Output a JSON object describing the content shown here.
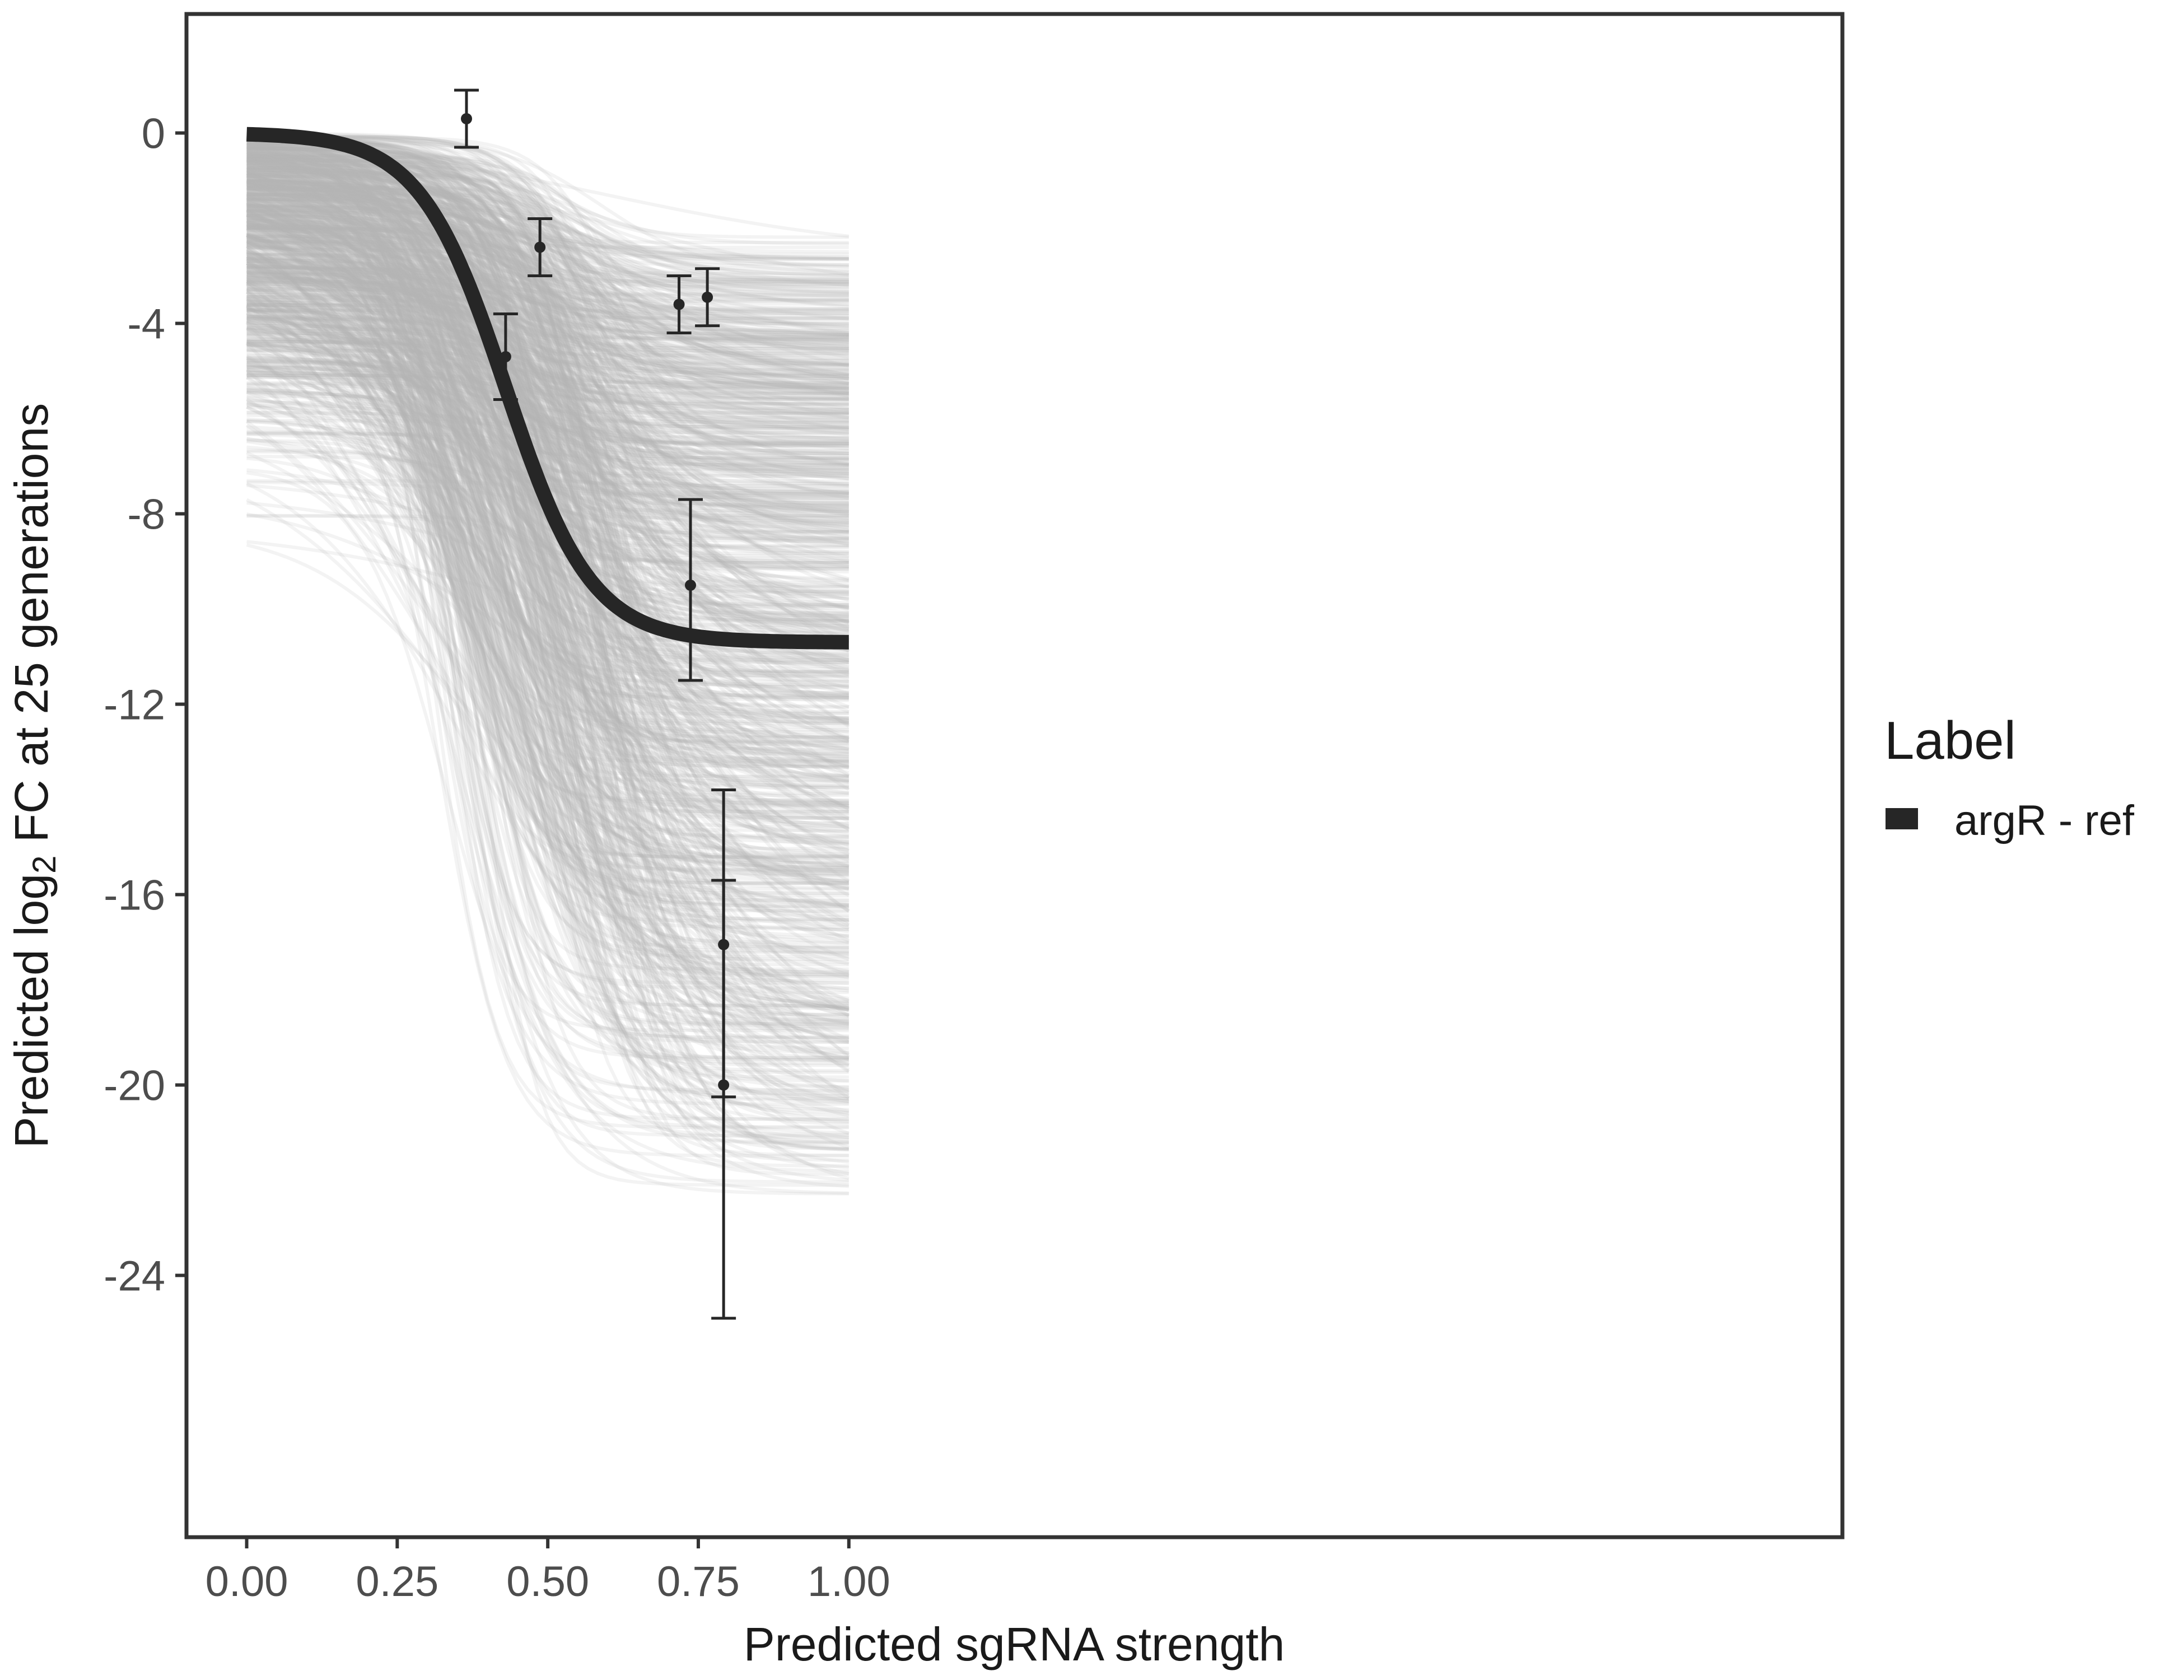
{
  "chart_data": {
    "type": "line",
    "title": "",
    "xlabel": "Predicted sgRNA strength",
    "ylabel_parts": {
      "prefix": "Predicted  log",
      "subscript": "2",
      "suffix": " FC at 25 generations"
    },
    "xlim": [
      -0.1,
      2.65
    ],
    "ylim": [
      -29.5,
      2.5
    ],
    "x_ticks": [
      0,
      0.25,
      0.5,
      0.75,
      1.0
    ],
    "x_tick_labels": [
      "0.00",
      "0.25",
      "0.50",
      "0.75",
      "1.00"
    ],
    "y_ticks": [
      0,
      -4,
      -8,
      -12,
      -16,
      -20,
      -24
    ],
    "y_tick_labels": [
      "0",
      "-4",
      "-8",
      "-12",
      "-16",
      "-20",
      "-24"
    ],
    "grid": false,
    "legend": {
      "title": "Label",
      "position": "right",
      "entries": [
        {
          "name": "argR - ref",
          "color": "#262626"
        }
      ]
    },
    "main_curve": {
      "name": "argR - ref",
      "model": "logistic",
      "upper": 0.0,
      "lower": -10.7,
      "midpoint": 0.43,
      "slope": 14,
      "x_range": [
        0,
        1.0
      ],
      "color": "#262626"
    },
    "posterior_draws": {
      "count": 1000,
      "color": "#b3b3b3",
      "opacity": 0.16,
      "upper_range": [
        -10.5,
        0.0
      ],
      "lower_range": [
        -22.5,
        -2.0
      ],
      "midpoint_range": [
        0.3,
        0.62
      ],
      "slope_range": [
        4,
        22
      ]
    },
    "points": [
      {
        "x": 0.365,
        "y": 0.3,
        "ymin": -0.3,
        "ymax": 0.9
      },
      {
        "x": 0.43,
        "y": -4.7,
        "ymin": -5.6,
        "ymax": -3.8
      },
      {
        "x": 0.487,
        "y": -2.4,
        "ymin": -3.0,
        "ymax": -1.8
      },
      {
        "x": 0.718,
        "y": -3.6,
        "ymin": -4.2,
        "ymax": -3.0
      },
      {
        "x": 0.765,
        "y": -3.45,
        "ymin": -4.05,
        "ymax": -2.85
      },
      {
        "x": 0.737,
        "y": -9.5,
        "ymin": -11.5,
        "ymax": -7.7
      },
      {
        "x": 0.792,
        "y": -17.05,
        "ymin": -20.25,
        "ymax": -13.8
      },
      {
        "x": 0.792,
        "y": -20.0,
        "ymin": -24.9,
        "ymax": -15.7
      }
    ]
  }
}
